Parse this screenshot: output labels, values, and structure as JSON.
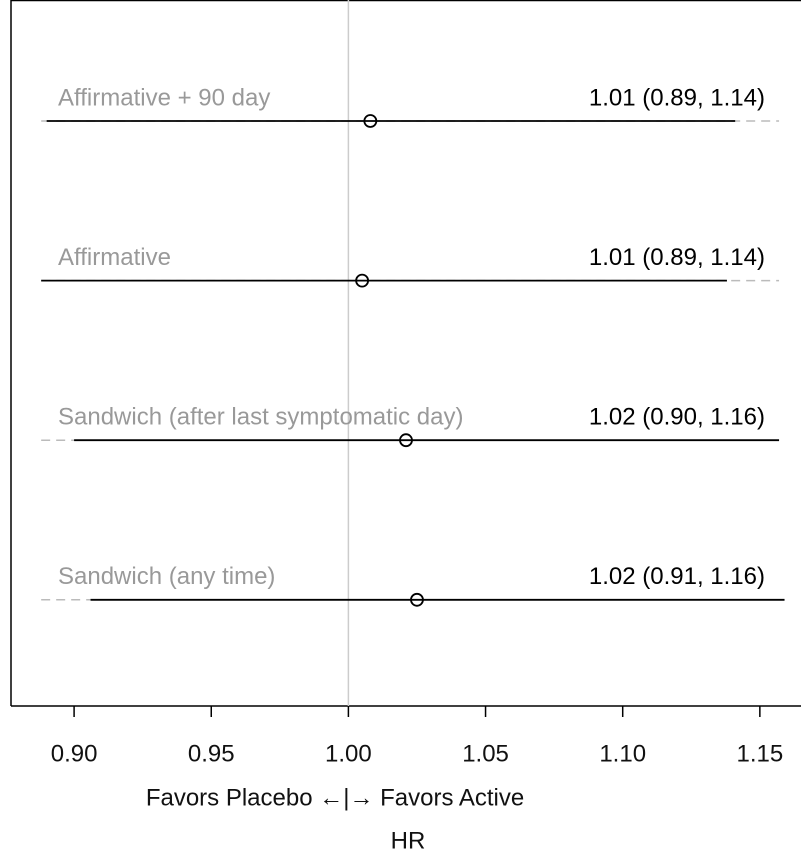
{
  "chart_data": {
    "type": "forest",
    "rows": [
      "Affirmative + 90 day",
      "Affirmative",
      "Sandwich (after last symptomatic day)",
      "Sandwich (any time)"
    ],
    "estimate_labels": [
      "1.01 (0.89, 1.14)",
      "1.01 (0.89, 1.14)",
      "1.02 (0.90, 1.16)",
      "1.02 (0.91, 1.16)"
    ],
    "estimates": [
      1.008,
      1.005,
      1.021,
      1.025
    ],
    "lower": [
      0.89,
      0.888,
      0.9,
      0.906
    ],
    "upper": [
      1.141,
      1.138,
      1.157,
      1.159
    ],
    "outer_lower": [
      0.888,
      0.888,
      0.888,
      0.888
    ],
    "outer_upper": [
      1.157,
      1.157,
      1.157,
      1.157
    ],
    "reference": 1,
    "xlim": [
      0.877,
      1.165
    ],
    "xticks": [
      {
        "value": 0.9,
        "label": "0.90"
      },
      {
        "value": 0.95,
        "label": "0.95"
      },
      {
        "value": 1,
        "label": "1.00"
      },
      {
        "value": 1.05,
        "label": "1.05"
      },
      {
        "value": 1.1,
        "label": "1.10"
      },
      {
        "value": 1.15,
        "label": "1.15"
      }
    ],
    "x_annotation": "Favors Placebo ←|→ Favors Active",
    "x_label": "HR"
  }
}
